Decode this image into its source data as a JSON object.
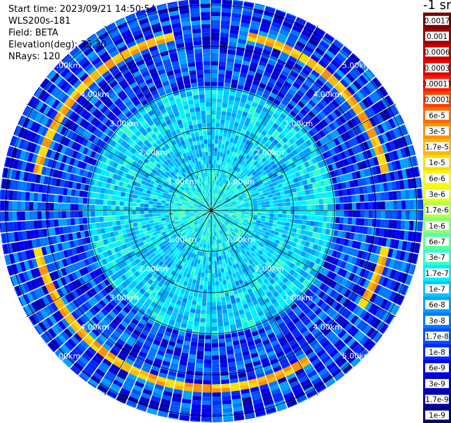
{
  "info": {
    "start_time": "Start time: 2023/09/21 14:50:54",
    "instrument": "WLS200s-181",
    "field": "Field: BETA",
    "elevation": "Elevation(deg): 35.30",
    "nrays": "NRays: 120"
  },
  "colorbar": {
    "title": "-1 sr",
    "labels": [
      "0.0017",
      "0.001",
      "0.0006",
      "0.0003",
      "0.00017",
      "0.0001",
      "6e-5",
      "3e-5",
      "1.7e-5",
      "1e-5",
      "6e-6",
      "3e-6",
      "1.7e-6",
      "1e-6",
      "6e-7",
      "3e-7",
      "1.7e-7",
      "1e-7",
      "6e-8",
      "3e-8",
      "1.7e-8",
      "1e-8",
      "6e-9",
      "3e-9",
      "1.7e-9",
      "1e-9"
    ],
    "colors": [
      "#7a0000",
      "#a00000",
      "#c80000",
      "#e60000",
      "#ff1a00",
      "#ff4000",
      "#ff6a00",
      "#ff9000",
      "#ffb800",
      "#ffdc00",
      "#fff700",
      "#e4ff13",
      "#b4ff43",
      "#86ff71",
      "#5cffa0",
      "#34ffc8",
      "#00f0ff",
      "#00c8ff",
      "#00a0ff",
      "#0078ff",
      "#0050ff",
      "#0028ff",
      "#0000f0",
      "#0000c8",
      "#0000a0",
      "#000078"
    ]
  },
  "chart_data": {
    "type": "heatmap",
    "projection": "polar",
    "quantity": "BETA",
    "rays": 120,
    "range_rings_km": [
      1,
      2,
      3,
      4,
      5
    ],
    "max_range_km": 5.1,
    "range_labels": [
      "1.00km",
      "2.00km",
      "3.00km",
      "4.00km",
      "5.00km"
    ],
    "spoke_angles_deg": [
      0,
      30,
      60,
      90,
      120,
      150,
      180,
      210,
      240,
      270,
      300,
      330
    ],
    "colorbar_scale": "log",
    "colorbar_range": [
      1e-09,
      0.0017
    ],
    "typical_value_inner_1km": 1.7e-07,
    "typical_value_1_to_3km": 1e-07,
    "typical_value_3_to_5km": 1e-08,
    "ring_feature": {
      "range_km": 4.3,
      "value": 1.7e-05
    },
    "ring_gap_azimuths_deg": [
      0,
      90,
      135,
      270
    ]
  }
}
